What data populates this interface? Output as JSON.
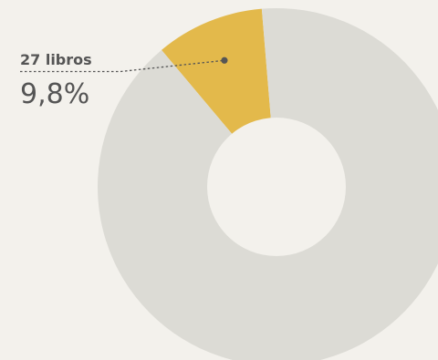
{
  "chart_data": {
    "type": "pie",
    "style": "donut",
    "slices": [
      {
        "value": 9.8,
        "color": "#e3b94b"
      },
      {
        "value": 90.2,
        "color": "#dcdbd5"
      }
    ],
    "annotation": {
      "count_text": "27 libros",
      "percent_text": "9,8%"
    },
    "colors": {
      "background": "#f3f1ec",
      "highlight": "#e3b94b",
      "rest": "#dcdbd5",
      "text": "#555555",
      "leader": "#555555"
    }
  }
}
